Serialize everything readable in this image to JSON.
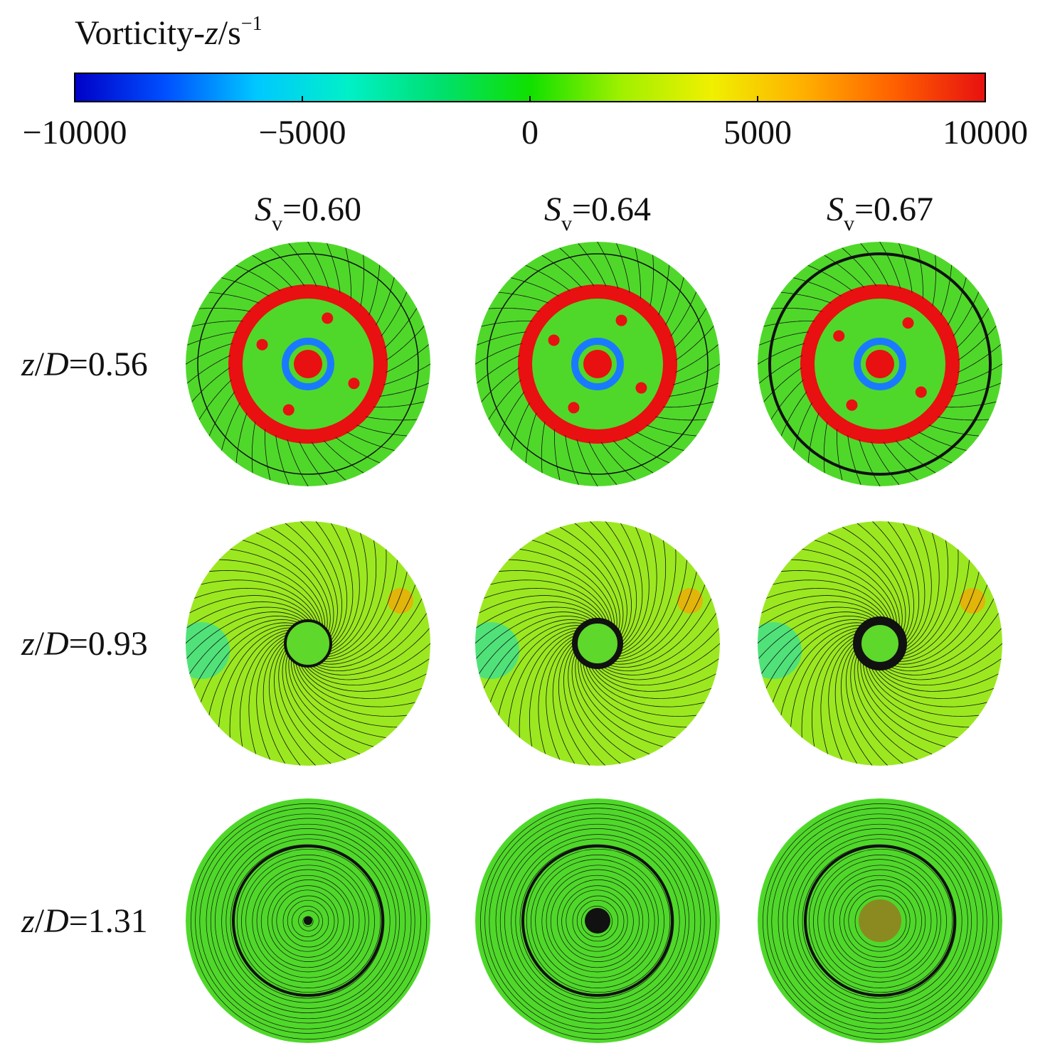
{
  "colorbar": {
    "label": {
      "text": "Vorticity-",
      "variable": "z",
      "unit": "/s",
      "exponent": "−1"
    },
    "range": [
      -10000,
      10000
    ],
    "ticks": [
      {
        "value": -10000,
        "label": "−10000"
      },
      {
        "value": -5000,
        "label": "−5000"
      },
      0,
      5000,
      10000
    ],
    "colors": [
      "#0000c8",
      "#0050ff",
      "#00c8ff",
      "#00f0c8",
      "#00e070",
      "#10e000",
      "#a0f000",
      "#f0f000",
      "#ffb000",
      "#ff6000",
      "#e81010"
    ]
  },
  "columns": [
    {
      "symbol": "S",
      "subscript": "v",
      "text": "=0.60"
    },
    {
      "symbol": "S",
      "subscript": "v",
      "text": "=0.64"
    },
    {
      "symbol": "S",
      "subscript": "v",
      "text": "=0.67"
    }
  ],
  "rows": [
    {
      "variable": "z",
      "slash": "/",
      "denominator": "D",
      "text": "=0.56"
    },
    {
      "variable": "z",
      "slash": "/",
      "denominator": "D",
      "text": "=0.93"
    },
    {
      "variable": "z",
      "slash": "/",
      "denominator": "D",
      "text": "=1.31"
    }
  ]
}
